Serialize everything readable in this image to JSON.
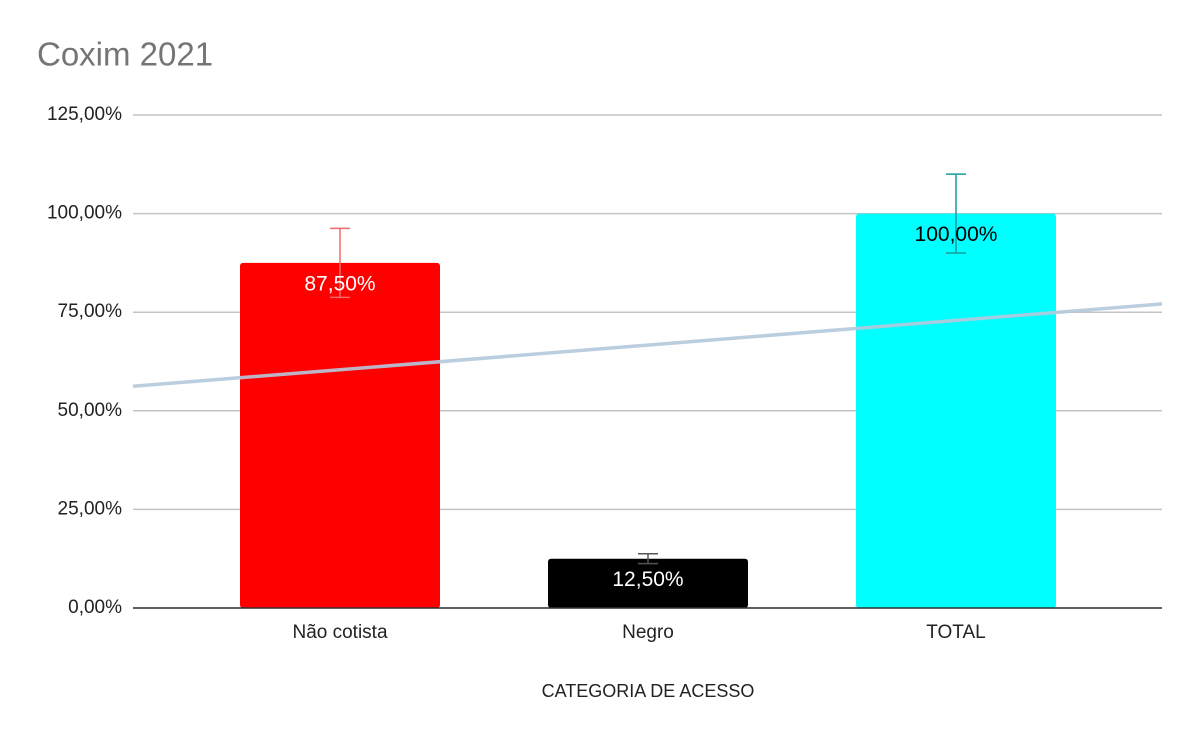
{
  "chart_data": {
    "type": "bar",
    "title": "Coxim 2021",
    "x_label": "CATEGORIA DE ACESSO",
    "categories": [
      "Não cotista",
      "Negro",
      "TOTAL"
    ],
    "values": [
      87.5,
      12.5,
      100
    ],
    "value_labels": [
      "87,50%",
      "12,50%",
      "100,00%"
    ],
    "errors": [
      8.75,
      1.25,
      10
    ],
    "colors": [
      "#ff0000",
      "#000000",
      "#00ffff"
    ],
    "error_colors": [
      "#f06a6a",
      "#555555",
      "#149c9c"
    ],
    "value_label_colors": [
      "#ffffff",
      "#ffffff",
      "#000000"
    ],
    "trendline": true,
    "trendline_color": "#b4c9dd",
    "ylim": [
      0,
      125
    ],
    "yticks": [
      {
        "value": 0,
        "label": "0,00%"
      },
      {
        "value": 25,
        "label": "25,00%"
      },
      {
        "value": 50,
        "label": "50,00%"
      },
      {
        "value": 75,
        "label": "75,00%"
      },
      {
        "value": 100,
        "label": "100,00%"
      },
      {
        "value": 125,
        "label": "125,00%"
      }
    ],
    "grid": true
  }
}
